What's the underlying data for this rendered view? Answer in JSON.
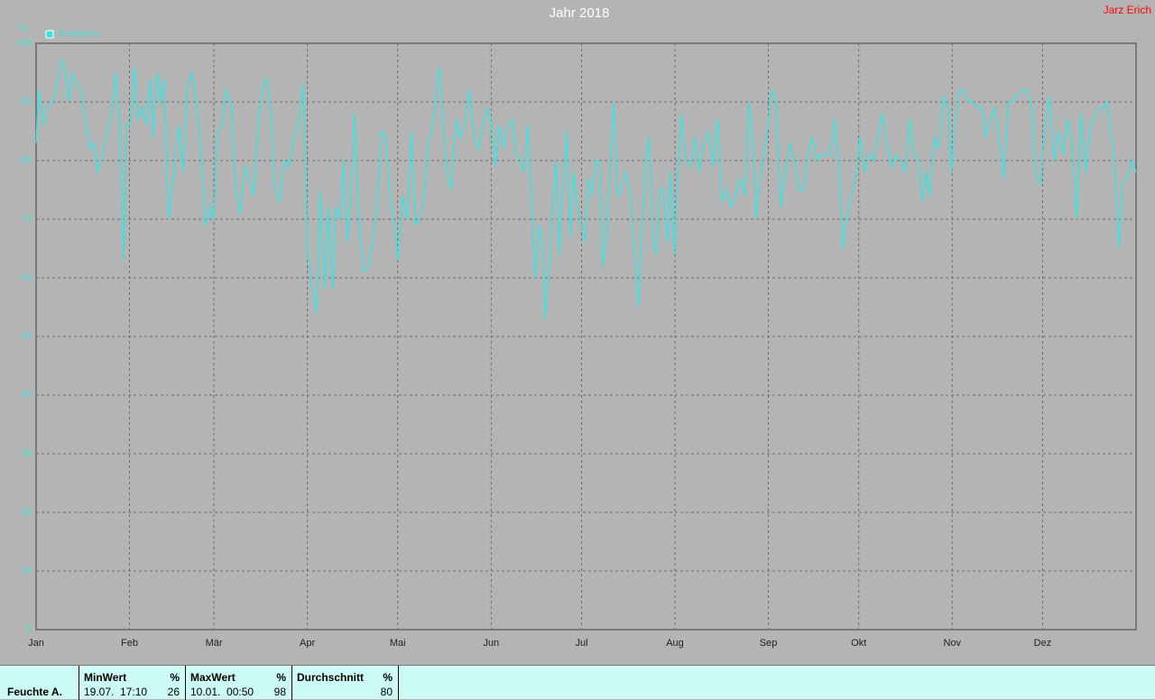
{
  "chart_data": {
    "type": "line",
    "title": "Jahr 2018",
    "annotation": "Jarz Erich",
    "ylabel": "%",
    "xlim": [
      0,
      365
    ],
    "ylim": [
      0,
      100
    ],
    "xticks": [
      {
        "value": 0,
        "label": "Jan"
      },
      {
        "value": 31,
        "label": "Feb"
      },
      {
        "value": 59,
        "label": "Mär"
      },
      {
        "value": 90,
        "label": "Apr"
      },
      {
        "value": 120,
        "label": "Mai"
      },
      {
        "value": 151,
        "label": "Jun"
      },
      {
        "value": 181,
        "label": "Jul"
      },
      {
        "value": 212,
        "label": "Aug"
      },
      {
        "value": 243,
        "label": "Sep"
      },
      {
        "value": 273,
        "label": "Okt"
      },
      {
        "value": 304,
        "label": "Nov"
      },
      {
        "value": 334,
        "label": "Dez"
      }
    ],
    "yticks": [
      0,
      10,
      20,
      30,
      40,
      50,
      60,
      70,
      80,
      90,
      100
    ],
    "grid": true,
    "legend": "top-left",
    "x": [
      0,
      0.9,
      2.4,
      3.6,
      5.4,
      6.6,
      8.4,
      9.6,
      10.8,
      12.0,
      13.5,
      15.0,
      16.5,
      18.0,
      19.2,
      20.4,
      21.6,
      23.4,
      25.2,
      26.4,
      27.6,
      29.1,
      30.0,
      31.4,
      32.6,
      33.8,
      35.3,
      36.5,
      37.7,
      38.9,
      40.1,
      41.3,
      42.5,
      44.0,
      45.5,
      47.3,
      48.8,
      50.3,
      51.8,
      53.3,
      54.8,
      56.3,
      57.8,
      59.0,
      60.2,
      61.7,
      62.9,
      64.7,
      66.2,
      67.7,
      69.2,
      70.7,
      72.2,
      73.4,
      74.9,
      76.4,
      77.8,
      79.3,
      80.8,
      82.4,
      83.9,
      85.7,
      87.2,
      88.7,
      90.1,
      91.6,
      93.1,
      94.3,
      95.8,
      97.0,
      98.5,
      99.4,
      100.9,
      102.1,
      103.3,
      104.5,
      105.7,
      107.2,
      108.7,
      110.2,
      111.7,
      113.2,
      114.7,
      116.2,
      117.4,
      118.9,
      120.1,
      121.6,
      123.1,
      124.6,
      125.8,
      127.3,
      128.8,
      130.3,
      131.5,
      132.7,
      133.9,
      135.1,
      136.6,
      137.8,
      139.3,
      140.8,
      142.3,
      143.8,
      145.3,
      146.8,
      148.3,
      149.8,
      151.2,
      152.4,
      153.6,
      155.1,
      156.6,
      158.1,
      159.3,
      160.8,
      162.0,
      163.2,
      164.4,
      165.6,
      166.8,
      168.0,
      168.9,
      170.1,
      171.3,
      172.5,
      173.7,
      174.9,
      176.1,
      177.3,
      178.5,
      179.7,
      180.9,
      182.1,
      183.3,
      184.5,
      185.7,
      186.9,
      188.1,
      189.3,
      190.5,
      191.7,
      192.9,
      194.1,
      195.6,
      197.1,
      198.6,
      199.8,
      201.0,
      202.2,
      203.4,
      204.6,
      205.8,
      207.0,
      208.2,
      209.4,
      210.5,
      211.7,
      212.9,
      214.1,
      215.6,
      217.1,
      218.6,
      220.1,
      221.6,
      223.1,
      224.6,
      226.1,
      227.6,
      229.1,
      230.6,
      232.1,
      233.6,
      235.1,
      236.6,
      237.8,
      239.0,
      240.2,
      241.4,
      242.9,
      244.1,
      245.6,
      247.1,
      248.6,
      250.1,
      251.6,
      253.1,
      254.6,
      256.1,
      257.6,
      259.1,
      260.6,
      262.1,
      263.6,
      265.1,
      266.6,
      267.8,
      269.0,
      270.4,
      271.9,
      273.4,
      274.9,
      276.4,
      277.9,
      279.4,
      280.9,
      282.4,
      283.9,
      285.4,
      286.9,
      288.4,
      289.9,
      291.4,
      292.9,
      294.1,
      295.3,
      296.5,
      298.0,
      299.5,
      301.0,
      302.5,
      303.7,
      304.9,
      306.4,
      307.9,
      309.4,
      310.9,
      312.4,
      313.9,
      315.1,
      316.6,
      318.1,
      319.6,
      321.1,
      322.6,
      324.1,
      325.6,
      327.1,
      328.9,
      330.3,
      331.8,
      333.3,
      334.8,
      336.3,
      337.8,
      339.3,
      340.8,
      342.3,
      343.8,
      345.3,
      346.8,
      348.3,
      349.8,
      351.3,
      352.8,
      354.3,
      355.5,
      357.0,
      358.2,
      359.4,
      360.6,
      362.1,
      363.6,
      365.0
    ],
    "series": [
      {
        "name": "Feuchte A.",
        "color": "#40e0e0",
        "values": [
          83,
          92,
          86,
          89,
          90,
          92,
          97,
          96,
          90,
          95,
          93,
          92,
          86,
          82,
          83,
          78,
          80,
          84,
          89,
          95,
          87,
          63,
          86,
          86,
          96,
          87,
          89,
          86,
          94,
          84,
          95,
          90,
          94,
          70,
          77,
          86,
          78,
          93,
          95,
          89,
          81,
          69,
          72,
          70,
          85,
          86,
          92,
          90,
          75,
          71,
          79,
          77,
          74,
          84,
          92,
          94,
          89,
          75,
          73,
          80,
          79,
          84,
          87,
          93,
          64,
          58,
          54,
          75,
          58,
          72,
          58,
          72,
          70,
          80,
          66,
          74,
          88,
          69,
          61,
          62,
          66,
          73,
          85,
          84,
          74,
          69,
          63,
          74,
          70,
          85,
          69,
          70,
          74,
          84,
          85,
          91,
          96,
          86,
          77,
          75,
          87,
          84,
          86,
          92,
          84,
          82,
          86,
          89,
          86,
          79,
          86,
          82,
          86,
          87,
          81,
          80,
          78,
          86,
          74,
          60,
          69,
          66,
          53,
          61,
          72,
          80,
          64,
          77,
          85,
          67,
          78,
          72,
          69,
          66,
          77,
          74,
          80,
          80,
          62,
          67,
          80,
          90,
          74,
          75,
          78,
          75,
          64,
          55,
          67,
          80,
          84,
          67,
          64,
          75,
          75,
          66,
          78,
          64,
          77,
          88,
          80,
          79,
          84,
          78,
          83,
          85,
          79,
          87,
          73,
          75,
          72,
          74,
          77,
          74,
          90,
          83,
          70,
          77,
          81,
          86,
          92,
          90,
          72,
          78,
          83,
          80,
          75,
          75,
          81,
          84,
          80,
          81,
          81,
          81,
          87,
          77,
          65,
          70,
          74,
          77,
          84,
          78,
          81,
          80,
          84,
          88,
          83,
          79,
          81,
          80,
          78,
          87,
          81,
          80,
          73,
          78,
          74,
          84,
          82,
          91,
          89,
          78,
          86,
          92,
          92,
          90,
          90,
          89,
          89,
          84,
          87,
          89,
          83,
          77,
          90,
          90,
          91,
          92,
          92,
          90,
          77,
          76,
          86,
          91,
          80,
          85,
          81,
          87,
          83,
          70,
          88,
          78,
          86,
          87,
          89,
          89,
          90,
          83,
          77,
          65,
          76,
          77,
          80,
          78
        ]
      }
    ]
  },
  "stats": {
    "row_label": "Feuchte A.",
    "columns": [
      {
        "header": "MinWert",
        "unit": "%",
        "date": "19.07.  17:10",
        "value": 26
      },
      {
        "header": "MaxWert",
        "unit": "%",
        "date": "10.01.  00:50",
        "value": 98
      },
      {
        "header": "Durchschnitt",
        "unit": "%",
        "value": 80
      }
    ]
  }
}
